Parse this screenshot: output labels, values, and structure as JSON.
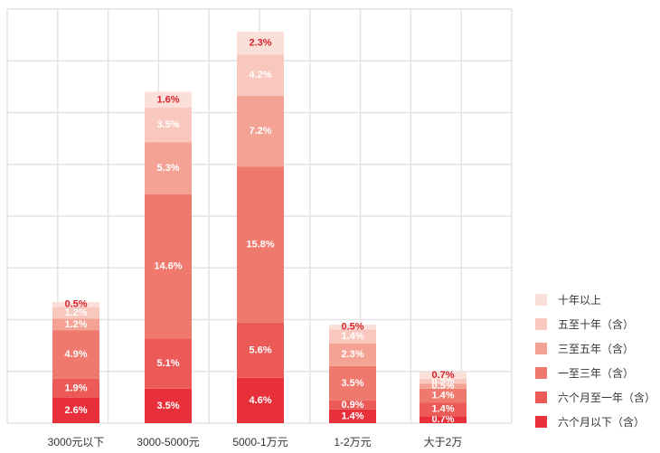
{
  "chart_data": {
    "type": "bar",
    "stacked": true,
    "categories": [
      "3000元以下",
      "3000-5000元",
      "5000-1万元",
      "1-2万元",
      "大于2万"
    ],
    "series": [
      {
        "name": "六个月以下（含）",
        "color": "#e8303a",
        "values": [
          2.6,
          3.5,
          4.6,
          1.4,
          0.7
        ],
        "labels": [
          "2.6%",
          "3.5%",
          "4.6%",
          "1.4%",
          "0.7%"
        ]
      },
      {
        "name": "六个月至一年（含）",
        "color": "#ec5a57",
        "values": [
          1.9,
          5.1,
          5.6,
          0.9,
          1.4
        ],
        "labels": [
          "1.9%",
          "5.1%",
          "5.6%",
          "0.9%",
          "1.4%"
        ]
      },
      {
        "name": "一至三年（含）",
        "color": "#f0796e",
        "values": [
          4.9,
          14.6,
          15.8,
          3.5,
          1.4
        ],
        "labels": [
          "4.9%",
          "14.6%",
          "15.8%",
          "3.5%",
          "1.4%"
        ]
      },
      {
        "name": "三至五年（含）",
        "color": "#f4a294",
        "values": [
          1.2,
          5.3,
          7.2,
          2.3,
          0.5
        ],
        "labels": [
          "1.2%",
          "5.3%",
          "7.2%",
          "2.3%",
          "0.5%"
        ]
      },
      {
        "name": "五至十年（含）",
        "color": "#f8c7bd",
        "values": [
          1.2,
          3.5,
          4.2,
          1.4,
          0.5
        ],
        "labels": [
          "1.2%",
          "3.5%",
          "4.2%",
          "1.4%",
          "0.5%"
        ]
      },
      {
        "name": "十年以上",
        "color": "#fbe0da",
        "values": [
          0.5,
          1.6,
          2.3,
          0.5,
          0.7
        ],
        "labels": [
          "0.5%",
          "1.6%",
          "2.3%",
          "0.5%",
          "0.7%"
        ]
      }
    ],
    "ylim": [
      0,
      42
    ],
    "grid": true,
    "legend_position": "right"
  }
}
